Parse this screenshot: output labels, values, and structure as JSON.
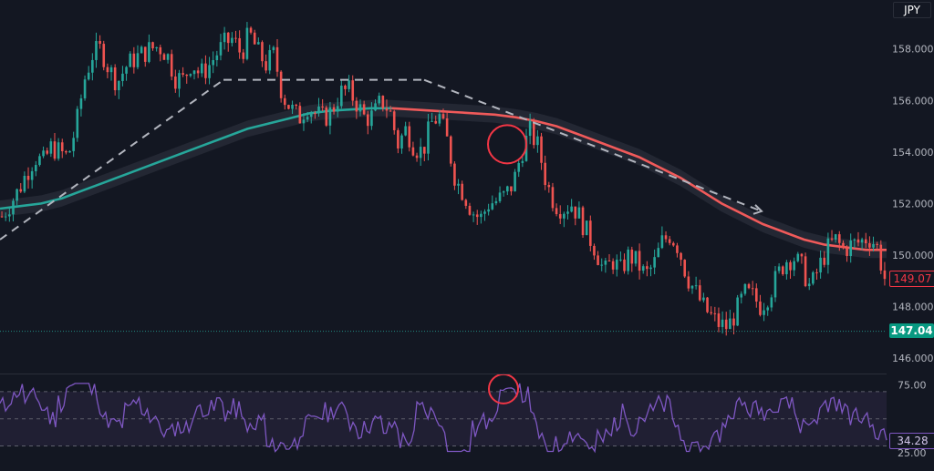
{
  "currency_label": "JPY",
  "colors": {
    "background": "#131722",
    "up": "#26a69a",
    "down": "#ef5350",
    "ma_up": "#26a69a",
    "ma_down": "#f05a5a",
    "band": "#2a2e39",
    "rsi": "#7e57c2",
    "rsi_fill": "#2a2440",
    "trend": "#b2b5be",
    "circle": "#f23645"
  },
  "price_badges": [
    {
      "label": "149.07",
      "value": 149.07,
      "style": "outline",
      "color": "#f23645"
    },
    {
      "label": "147.04",
      "value": 147.04,
      "style": "filled",
      "color": "#089981"
    }
  ],
  "chart_data": [
    {
      "type": "candlestick",
      "title": "",
      "y_ticks": [
        "158.000",
        "156.000",
        "154.000",
        "152.000",
        "150.000",
        "148.000",
        "146.000"
      ],
      "y_tick_values": [
        158,
        156,
        154,
        152,
        150,
        148,
        146
      ],
      "ylim": [
        145.4,
        159.9
      ],
      "close_series_approx": [
        151.5,
        152.0,
        152.5,
        153.2,
        153.8,
        153.6,
        154.2,
        154.0,
        153.8,
        155.0,
        156.8,
        157.8,
        158.0,
        157.2,
        156.7,
        157.3,
        157.6,
        157.8,
        158.0,
        158.1,
        157.8,
        156.9,
        156.8,
        157.5,
        157.0,
        157.3,
        157.8,
        158.2,
        158.4,
        157.8,
        158.6,
        157.9,
        157.4,
        157.8,
        156.2,
        155.7,
        155.3,
        155.8,
        155.5,
        155.3,
        155.6,
        156.3,
        156.4,
        155.9,
        155.3,
        155.4,
        156.0,
        155.6,
        154.3,
        154.9,
        154.2,
        154.0,
        155.1,
        155.4,
        154.4,
        152.9,
        152.4,
        151.7,
        151.4,
        152.0,
        152.1,
        152.3,
        152.8,
        154.0,
        154.8,
        154.2,
        152.8,
        152.0,
        151.8,
        152.0,
        151.5,
        150.8,
        150.2,
        149.3,
        149.8,
        149.4,
        150.0,
        149.7,
        149.2,
        149.6,
        150.5,
        150.8,
        150.3,
        149.2,
        148.6,
        148.0,
        147.6,
        147.3,
        147.2,
        147.8,
        148.5,
        148.4,
        148.0,
        148.5,
        149.2,
        149.8,
        149.9,
        149.5,
        148.7,
        149.5,
        150.2,
        150.6,
        150.2,
        150.4,
        150.5,
        150.7,
        150.4,
        149.1
      ],
      "ma_series_approx": [
        151.8,
        151.9,
        152.0,
        152.2,
        152.5,
        152.8,
        153.1,
        153.4,
        153.7,
        154.0,
        154.3,
        154.6,
        154.9,
        155.1,
        155.3,
        155.5,
        155.6,
        155.65,
        155.7,
        155.7,
        155.65,
        155.6,
        155.55,
        155.5,
        155.45,
        155.35,
        155.2,
        155.0,
        154.7,
        154.4,
        154.1,
        153.8,
        153.4,
        153.0,
        152.5,
        152.0,
        151.6,
        151.2,
        150.9,
        150.6,
        150.4,
        150.3,
        150.2,
        150.2
      ],
      "trend_lines": [
        {
          "from": [
            0,
            150.6
          ],
          "to": [
            245,
            156.8
          ]
        },
        {
          "from": [
            245,
            156.8
          ],
          "to": [
            465,
            156.8
          ]
        },
        {
          "from": [
            465,
            156.8
          ],
          "to": [
            835,
            151.7
          ]
        }
      ],
      "highlight": {
        "x_index": 556,
        "y": 154.3
      }
    },
    {
      "type": "line",
      "title": "",
      "y_ticks": [
        "75.00",
        "25.00"
      ],
      "y_tick_values": [
        75,
        25
      ],
      "ylim": [
        23,
        82
      ],
      "levels": [
        70,
        50,
        30
      ],
      "last_value_label": "34.28",
      "last_value": 34.28,
      "highlight": {
        "y": 72
      }
    }
  ]
}
